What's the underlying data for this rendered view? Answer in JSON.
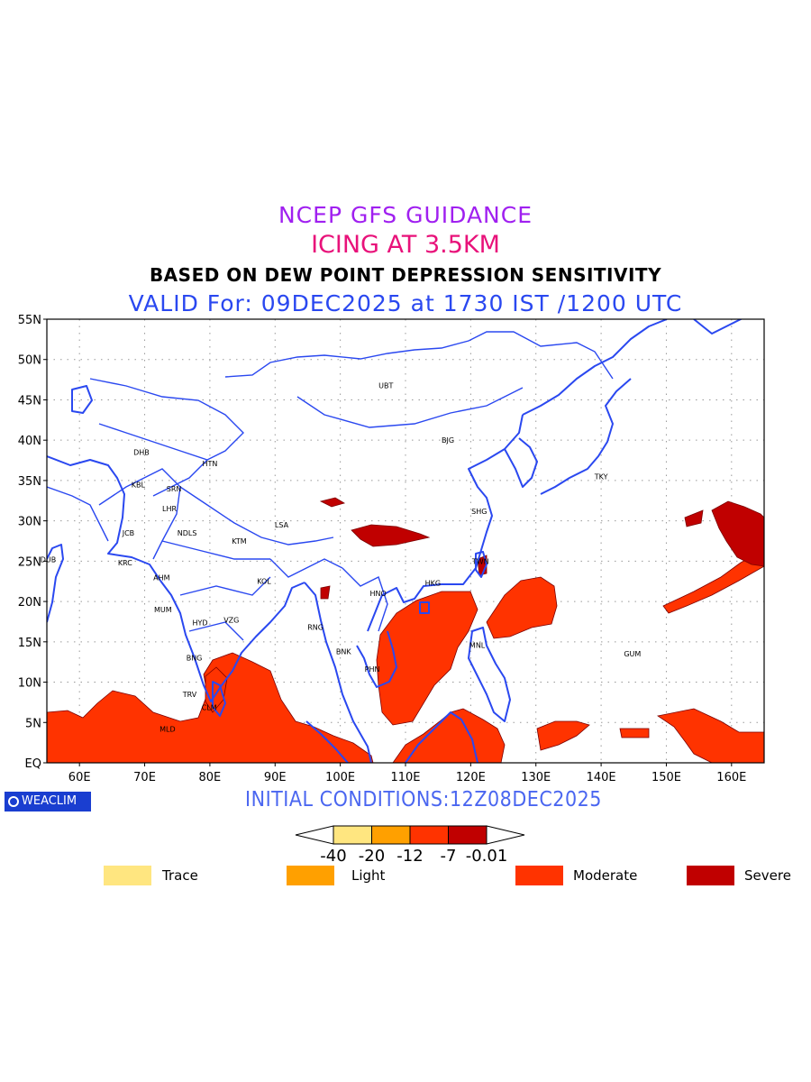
{
  "titles": {
    "line1": "NCEP GFS GUIDANCE",
    "line2": "ICING AT 3.5KM",
    "line3": "BASED ON DEW POINT DEPRESSION SENSITIVITY",
    "line4": "VALID For: 09DEC2025 at 1730 IST /1200 UTC"
  },
  "axes": {
    "lat_labels": [
      "55N",
      "50N",
      "45N",
      "40N",
      "35N",
      "30N",
      "25N",
      "20N",
      "15N",
      "10N",
      "5N",
      "EQ"
    ],
    "lon_labels": [
      "60E",
      "70E",
      "80E",
      "90E",
      "100E",
      "110E",
      "120E",
      "130E",
      "140E",
      "150E",
      "160E"
    ]
  },
  "stations": [
    {
      "name": "UBT",
      "lon": 107,
      "lat": 46.8
    },
    {
      "name": "BJG",
      "lon": 116.5,
      "lat": 40.0
    },
    {
      "name": "TKY",
      "lon": 140,
      "lat": 35.5
    },
    {
      "name": "DHB",
      "lon": 69.5,
      "lat": 38.5
    },
    {
      "name": "HTN",
      "lon": 80,
      "lat": 37.1
    },
    {
      "name": "KBL",
      "lon": 69.0,
      "lat": 34.5
    },
    {
      "name": "SRN",
      "lon": 74.5,
      "lat": 34.0
    },
    {
      "name": "LHR",
      "lon": 73.8,
      "lat": 31.5
    },
    {
      "name": "JCB",
      "lon": 67.5,
      "lat": 28.5
    },
    {
      "name": "NDLS",
      "lon": 76.5,
      "lat": 28.5
    },
    {
      "name": "KTM",
      "lon": 84.5,
      "lat": 27.5
    },
    {
      "name": "LSA",
      "lon": 91.0,
      "lat": 29.5
    },
    {
      "name": "SHG",
      "lon": 121.3,
      "lat": 31.2
    },
    {
      "name": "DUB",
      "lon": 55.2,
      "lat": 25.2
    },
    {
      "name": "KRC",
      "lon": 67.0,
      "lat": 24.8
    },
    {
      "name": "AHM",
      "lon": 72.6,
      "lat": 23.0
    },
    {
      "name": "KOL",
      "lon": 88.3,
      "lat": 22.5
    },
    {
      "name": "HNO",
      "lon": 105.8,
      "lat": 21.0
    },
    {
      "name": "HKG",
      "lon": 114.2,
      "lat": 22.3
    },
    {
      "name": "TWN",
      "lon": 121.5,
      "lat": 25.0
    },
    {
      "name": "MUM",
      "lon": 72.8,
      "lat": 19.0
    },
    {
      "name": "HYD",
      "lon": 78.5,
      "lat": 17.4
    },
    {
      "name": "VZG",
      "lon": 83.3,
      "lat": 17.7
    },
    {
      "name": "RNG",
      "lon": 96.2,
      "lat": 16.8
    },
    {
      "name": "MNL",
      "lon": 121.0,
      "lat": 14.6
    },
    {
      "name": "GUM",
      "lon": 144.8,
      "lat": 13.5
    },
    {
      "name": "BNK",
      "lon": 100.5,
      "lat": 13.8
    },
    {
      "name": "BNG",
      "lon": 77.6,
      "lat": 13.0
    },
    {
      "name": "PHN",
      "lon": 104.9,
      "lat": 11.6
    },
    {
      "name": "TRV",
      "lon": 76.9,
      "lat": 8.5
    },
    {
      "name": "CLM",
      "lon": 79.9,
      "lat": 6.9
    },
    {
      "name": "MLD",
      "lon": 73.5,
      "lat": 4.2
    }
  ],
  "colorbar": {
    "ticks": [
      "-40",
      "-20",
      "-12",
      "-7",
      "-0.01"
    ],
    "colors": [
      "#ffe680",
      "#ffa000",
      "#ff3300",
      "#c00000"
    ]
  },
  "legend": [
    {
      "label": "Trace",
      "color": "#ffe680"
    },
    {
      "label": "Light",
      "color": "#ffa000"
    },
    {
      "label": "Moderate",
      "color": "#ff3300"
    },
    {
      "label": "Severe",
      "color": "#c00000"
    }
  ],
  "footer": {
    "init": "INITIAL CONDITIONS:12Z08DEC2025",
    "logo": "WEACLIM"
  }
}
